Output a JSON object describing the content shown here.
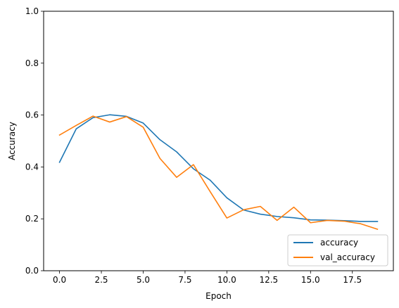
{
  "chart_data": {
    "type": "line",
    "xlabel": "Epoch",
    "ylabel": "Accuracy",
    "xlim": [
      -0.95,
      19.95
    ],
    "ylim": [
      0,
      1
    ],
    "xticks": [
      "0.0",
      "2.5",
      "5.0",
      "7.5",
      "10.0",
      "12.5",
      "15.0",
      "17.5"
    ],
    "yticks": [
      "0.0",
      "0.2",
      "0.4",
      "0.6",
      "0.8",
      "1.0"
    ],
    "x": [
      0,
      1,
      2,
      3,
      4,
      5,
      6,
      7,
      8,
      9,
      10,
      11,
      12,
      13,
      14,
      15,
      16,
      17,
      18,
      19
    ],
    "series": [
      {
        "name": "accuracy",
        "color": "#1f77b4",
        "values": [
          0.418,
          0.547,
          0.59,
          0.601,
          0.595,
          0.569,
          0.505,
          0.458,
          0.393,
          0.349,
          0.281,
          0.234,
          0.218,
          0.209,
          0.204,
          0.196,
          0.195,
          0.193,
          0.19,
          0.19
        ]
      },
      {
        "name": "val_accuracy",
        "color": "#ff7f0e",
        "values": [
          0.523,
          0.56,
          0.596,
          0.573,
          0.594,
          0.553,
          0.433,
          0.36,
          0.409,
          0.305,
          0.203,
          0.235,
          0.248,
          0.194,
          0.245,
          0.185,
          0.194,
          0.191,
          0.181,
          0.16
        ]
      }
    ],
    "legend_position": "lower-right",
    "grid": false
  }
}
